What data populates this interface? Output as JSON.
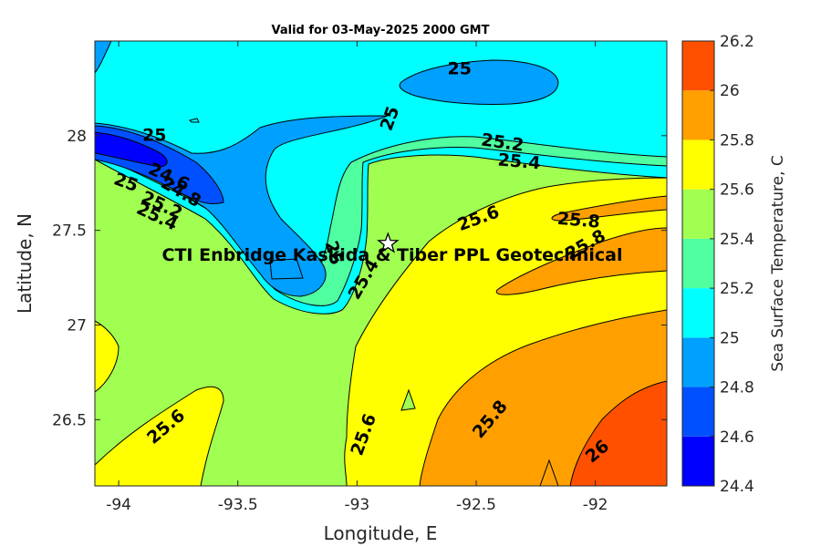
{
  "chart_data": {
    "type": "contour-map",
    "title": "Valid for 03-May-2025 2000 GMT",
    "xlabel": "Longitude, E",
    "ylabel": "Latitude, N",
    "xlim": [
      -94.1,
      -91.7
    ],
    "ylim": [
      26.15,
      28.5
    ],
    "x_ticks": [
      "-94",
      "-93.5",
      "-93",
      "-92.5",
      "-92"
    ],
    "y_ticks": [
      "26.5",
      "27",
      "27.5",
      "28"
    ],
    "colorbar": {
      "label": "Sea Surface Temperature, C",
      "levels": [
        24.4,
        24.6,
        24.8,
        25,
        25.2,
        25.4,
        25.6,
        25.8,
        26,
        26.2
      ],
      "tick_labels": [
        "24.4",
        "24.6",
        "24.8",
        "25",
        "25.2",
        "25.4",
        "25.6",
        "25.8",
        "26",
        "26.2"
      ],
      "colors": [
        "#0000ff",
        "#0050ff",
        "#00a0ff",
        "#00ffff",
        "#50ffa0",
        "#a0ff50",
        "#ffff00",
        "#ffa000",
        "#ff5000"
      ]
    },
    "contour_labels": [
      {
        "text": "25",
        "lon": -92.57,
        "lat": 28.35
      },
      {
        "text": "25",
        "lon": -92.86,
        "lat": 28.09
      },
      {
        "text": "25",
        "lon": -93.85,
        "lat": 28.0
      },
      {
        "text": "25.2",
        "lon": -92.39,
        "lat": 27.96
      },
      {
        "text": "25.4",
        "lon": -92.32,
        "lat": 27.86
      },
      {
        "text": "24.6",
        "lon": -93.79,
        "lat": 27.78
      },
      {
        "text": "24.8",
        "lon": -93.74,
        "lat": 27.7
      },
      {
        "text": "25",
        "lon": -93.97,
        "lat": 27.75
      },
      {
        "text": "25.2",
        "lon": -93.82,
        "lat": 27.63
      },
      {
        "text": "25.4",
        "lon": -93.84,
        "lat": 27.57
      },
      {
        "text": "25.6",
        "lon": -92.49,
        "lat": 27.56
      },
      {
        "text": "25.8",
        "lon": -92.07,
        "lat": 27.55
      },
      {
        "text": "25.8",
        "lon": -92.04,
        "lat": 27.42
      },
      {
        "text": "25.4",
        "lon": -92.97,
        "lat": 27.24
      },
      {
        "text": "25",
        "lon": -93.1,
        "lat": 27.38
      },
      {
        "text": "25.6",
        "lon": -93.8,
        "lat": 26.46
      },
      {
        "text": "25.6",
        "lon": -92.97,
        "lat": 26.42
      },
      {
        "text": "25.8",
        "lon": -92.44,
        "lat": 26.5
      },
      {
        "text": "26",
        "lon": -91.99,
        "lat": 26.33
      }
    ],
    "site": {
      "label": "CTI Enbridge  Kaskida & Tiber PPL Geotechnical",
      "lon": -92.87,
      "lat": 27.43,
      "marker": "star"
    },
    "grid": false
  }
}
